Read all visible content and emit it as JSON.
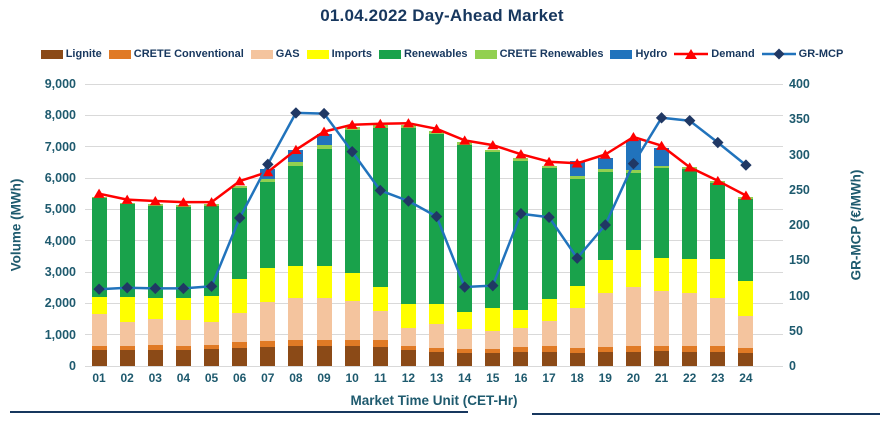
{
  "chart_data": {
    "type": "bar",
    "subtype": "stacked-bar-with-lines",
    "title": "01.04.2022  Day-Ahead Market",
    "categories": [
      "01",
      "02",
      "03",
      "04",
      "05",
      "06",
      "07",
      "08",
      "09",
      "10",
      "11",
      "12",
      "13",
      "14",
      "15",
      "16",
      "17",
      "18",
      "19",
      "20",
      "21",
      "22",
      "23",
      "24"
    ],
    "bar_series": [
      {
        "name": "Lignite",
        "color": "#8B4A17",
        "values": [
          520,
          520,
          520,
          520,
          530,
          570,
          600,
          630,
          630,
          630,
          620,
          520,
          440,
          420,
          410,
          440,
          460,
          420,
          440,
          460,
          470,
          460,
          460,
          420
        ]
      },
      {
        "name": "CRETE Conventional",
        "color": "#E07A25",
        "values": [
          130,
          130,
          150,
          130,
          140,
          190,
          210,
          210,
          215,
          210,
          220,
          130,
          130,
          130,
          140,
          160,
          170,
          145,
          160,
          170,
          170,
          170,
          170,
          145
        ]
      },
      {
        "name": "GAS",
        "color": "#F4C49E",
        "values": [
          1000,
          770,
          820,
          820,
          750,
          940,
          1225,
          1330,
          1325,
          1245,
          910,
          575,
          760,
          620,
          570,
          600,
          805,
          1290,
          1745,
          1905,
          1740,
          1700,
          1540,
          1025
        ]
      },
      {
        "name": "Imports",
        "color": "#FFFF00",
        "values": [
          560,
          770,
          690,
          710,
          800,
          1070,
          1080,
          1020,
          1020,
          890,
          770,
          755,
          660,
          545,
          735,
          575,
          705,
          700,
          1050,
          1175,
          1080,
          1070,
          1260,
          1130
        ]
      },
      {
        "name": "Renewables",
        "color": "#19A24B",
        "values": [
          3140,
          2970,
          2930,
          2910,
          2890,
          2900,
          2760,
          3190,
          3720,
          4560,
          5070,
          5610,
          5410,
          5340,
          4970,
          4780,
          4170,
          3410,
          2810,
          2435,
          2860,
          2880,
          2400,
          2620
        ]
      },
      {
        "name": "CRETE Renewables",
        "color": "#92D050",
        "values": [
          50,
          50,
          50,
          50,
          50,
          60,
          90,
          130,
          130,
          100,
          90,
          90,
          90,
          80,
          70,
          70,
          70,
          85,
          85,
          100,
          75,
          75,
          70,
          65
        ]
      },
      {
        "name": "Hydro",
        "color": "#2173BC",
        "values": [
          0,
          0,
          0,
          0,
          0,
          0,
          320,
          390,
          370,
          0,
          0,
          0,
          0,
          0,
          0,
          0,
          0,
          500,
          350,
          975,
          565,
          0,
          0,
          0
        ]
      }
    ],
    "line_series": [
      {
        "name": "Demand",
        "axis": "left",
        "color": "#FF0000",
        "marker": "triangle",
        "marker_color": "#FF0000",
        "values": [
          5500,
          5310,
          5265,
          5230,
          5230,
          5900,
          6190,
          6900,
          7480,
          7700,
          7730,
          7750,
          7570,
          7200,
          7050,
          6760,
          6520,
          6470,
          6750,
          7310,
          7030,
          6340,
          5910,
          5440
        ]
      },
      {
        "name": "GR-MCP",
        "axis": "right",
        "color": "#2173BC",
        "marker": "diamond",
        "marker_color": "#203864",
        "values": [
          109,
          111,
          110,
          110,
          113,
          210,
          286,
          359,
          358,
          304,
          249,
          234,
          212,
          112,
          114,
          216,
          211,
          153,
          200,
          287,
          352,
          348,
          317,
          285
        ]
      }
    ],
    "left_axis": {
      "title": "Volume (MWh)",
      "min": 0,
      "max": 9000,
      "step": 1000,
      "tick_labels": [
        "0",
        "1,000",
        "2,000",
        "3,000",
        "4,000",
        "5,000",
        "6,000",
        "7,000",
        "8,000",
        "9,000"
      ]
    },
    "right_axis": {
      "title": "GR-MCP (€/MWh)",
      "min": 0,
      "max": 400,
      "step": 50,
      "tick_labels": [
        "0",
        "50",
        "100",
        "150",
        "200",
        "250",
        "300",
        "350",
        "400"
      ]
    },
    "x_axis": {
      "title": "Market Time Unit (CET-Hr)"
    },
    "grid": "horizontal",
    "legend_position": "top"
  }
}
